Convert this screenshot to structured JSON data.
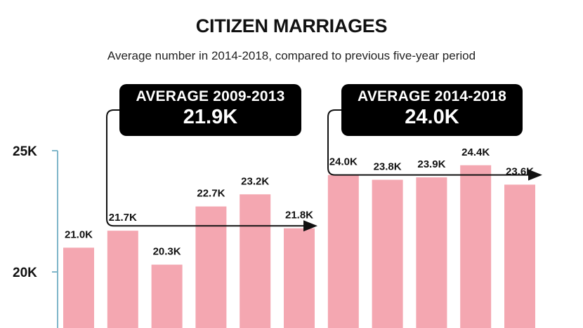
{
  "chart_data": {
    "type": "bar",
    "title": "CITIZEN MARRIAGES",
    "subtitle": "Average number in 2014-2018, compared to previous five-year period",
    "values": [
      21.0,
      21.7,
      20.3,
      22.7,
      23.2,
      21.8,
      24.0,
      23.8,
      23.9,
      24.4,
      23.6
    ],
    "value_labels": [
      "21.0K",
      "21.7K",
      "20.3K",
      "22.7K",
      "23.2K",
      "21.8K",
      "24.0K",
      "23.8K",
      "23.9K",
      "24.4K",
      "23.6K"
    ],
    "y_ticks": [
      {
        "value": 25,
        "label": "25K"
      },
      {
        "value": 20,
        "label": "20K"
      }
    ],
    "unit": "K",
    "bar_color": "#f4a7b1",
    "axis_color": "#7fb6c9",
    "grid": false,
    "averages": [
      {
        "label": "AVERAGE 2009-2013",
        "value_label": "21.9K",
        "value": 21.9,
        "first_bar": 0,
        "last_bar": 5
      },
      {
        "label": "AVERAGE 2014-2018",
        "value_label": "24.0K",
        "value": 24.0,
        "first_bar": 6,
        "last_bar": 10
      }
    ]
  }
}
